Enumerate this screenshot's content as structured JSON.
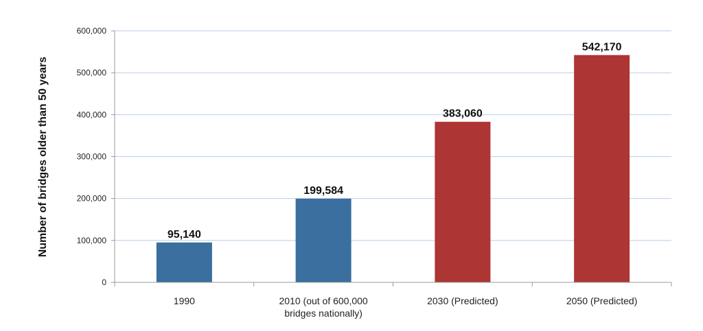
{
  "chart_data": {
    "type": "bar",
    "title": "",
    "xlabel": "",
    "ylabel": "Number of bridges older than 50 years",
    "ylim": [
      0,
      600000
    ],
    "yticks": [
      0,
      100000,
      200000,
      300000,
      400000,
      500000,
      600000
    ],
    "ytick_labels": [
      "0",
      "100,000",
      "200,000",
      "300,000",
      "400,000",
      "500,000",
      "600,000"
    ],
    "grid": true,
    "categories": [
      [
        "1990"
      ],
      [
        "2010 (out of 600,000",
        "bridges nationally)"
      ],
      [
        "2030 (Predicted)"
      ],
      [
        "2050 (Predicted)"
      ]
    ],
    "values": [
      95140,
      199584,
      383060,
      542170
    ],
    "value_labels": [
      "95,140",
      "199,584",
      "383,060",
      "542,170"
    ],
    "colors": [
      "#3a6f9f",
      "#3a6f9f",
      "#ad3534",
      "#ad3534"
    ],
    "gridline_color": "#b9cde4",
    "axis_color": "#999999"
  }
}
